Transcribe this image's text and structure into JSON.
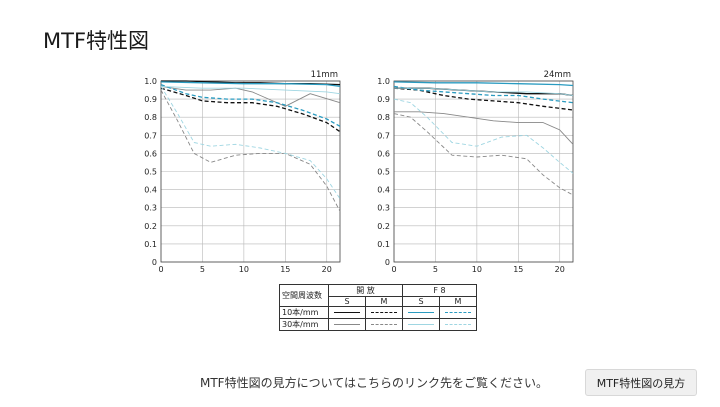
{
  "page": {
    "title": "MTF特性図",
    "footer_note": "MTF特性図の見方についてはこちらのリンク先をご覧ください。",
    "button_label": "MTF特性図の見方"
  },
  "legend": {
    "header_label": "空間周波数",
    "group_open": "開 放",
    "group_f8": "F 8",
    "col_s": "S",
    "col_m": "M",
    "row_10": "10本/mm",
    "row_30": "30本/mm"
  },
  "colors": {
    "open_10": "#111111",
    "open_30": "#888888",
    "f8_10": "#2a9bc0",
    "f8_30": "#9fd6e2"
  },
  "chart_data": [
    {
      "type": "line",
      "title": "11mm",
      "xlim": [
        0,
        21.6
      ],
      "ylim": [
        0,
        1.0
      ],
      "xticks": [
        0,
        5,
        10,
        15,
        20
      ],
      "yticks": [
        0,
        0.1,
        0.2,
        0.3,
        0.4,
        0.5,
        0.6,
        0.7,
        0.8,
        0.9,
        1.0
      ],
      "grid": true,
      "series": [
        {
          "key": "open_10_S",
          "color": "#111111",
          "dash": false,
          "x": [
            0,
            3,
            6,
            9,
            12,
            15,
            18,
            21.6
          ],
          "y": [
            1.0,
            1.0,
            0.995,
            0.99,
            0.99,
            0.985,
            0.985,
            0.98
          ]
        },
        {
          "key": "open_10_M",
          "color": "#111111",
          "dash": true,
          "x": [
            0,
            3,
            5,
            8,
            11,
            14,
            17,
            20,
            21.6
          ],
          "y": [
            0.96,
            0.92,
            0.89,
            0.88,
            0.88,
            0.86,
            0.82,
            0.77,
            0.72
          ]
        },
        {
          "key": "open_30_S",
          "color": "#888888",
          "dash": false,
          "x": [
            0,
            3,
            6,
            9,
            11,
            13,
            15,
            18,
            21.6
          ],
          "y": [
            0.97,
            0.95,
            0.95,
            0.96,
            0.94,
            0.9,
            0.86,
            0.93,
            0.88
          ]
        },
        {
          "key": "open_30_M",
          "color": "#888888",
          "dash": true,
          "x": [
            0,
            2,
            4,
            6,
            9,
            12,
            15,
            18,
            20,
            21.6
          ],
          "y": [
            0.95,
            0.78,
            0.6,
            0.55,
            0.59,
            0.6,
            0.6,
            0.54,
            0.42,
            0.28
          ]
        },
        {
          "key": "f8_10_S",
          "color": "#2a9bc0",
          "dash": false,
          "x": [
            0,
            5,
            10,
            15,
            20,
            21.6
          ],
          "y": [
            0.995,
            0.99,
            0.985,
            0.985,
            0.98,
            0.97
          ]
        },
        {
          "key": "f8_10_M",
          "color": "#2a9bc0",
          "dash": true,
          "x": [
            0,
            3,
            5,
            8,
            11,
            14,
            17,
            20,
            21.6
          ],
          "y": [
            0.98,
            0.93,
            0.91,
            0.9,
            0.9,
            0.88,
            0.84,
            0.79,
            0.75
          ]
        },
        {
          "key": "f8_30_S",
          "color": "#9fd6e2",
          "dash": false,
          "x": [
            0,
            5,
            10,
            15,
            20,
            21.6
          ],
          "y": [
            0.97,
            0.96,
            0.96,
            0.95,
            0.94,
            0.93
          ]
        },
        {
          "key": "f8_30_M",
          "color": "#9fd6e2",
          "dash": true,
          "x": [
            0,
            2,
            4,
            6,
            9,
            12,
            15,
            18,
            20,
            21.6
          ],
          "y": [
            0.97,
            0.82,
            0.66,
            0.64,
            0.65,
            0.63,
            0.6,
            0.56,
            0.46,
            0.35
          ]
        }
      ]
    },
    {
      "type": "line",
      "title": "24mm",
      "xlim": [
        0,
        21.6
      ],
      "ylim": [
        0,
        1.0
      ],
      "xticks": [
        0,
        5,
        10,
        15,
        20
      ],
      "yticks": [
        0,
        0.1,
        0.2,
        0.3,
        0.4,
        0.5,
        0.6,
        0.7,
        0.8,
        0.9,
        1.0
      ],
      "grid": true,
      "series": [
        {
          "key": "open_10_S",
          "color": "#111111",
          "dash": false,
          "x": [
            0,
            4,
            8,
            12,
            16,
            20,
            21.6
          ],
          "y": [
            0.96,
            0.96,
            0.95,
            0.94,
            0.93,
            0.93,
            0.92
          ]
        },
        {
          "key": "open_10_M",
          "color": "#111111",
          "dash": true,
          "x": [
            0,
            3,
            6,
            9,
            12,
            15,
            18,
            21.6
          ],
          "y": [
            0.96,
            0.95,
            0.92,
            0.9,
            0.89,
            0.88,
            0.86,
            0.84
          ]
        },
        {
          "key": "open_30_S",
          "color": "#888888",
          "dash": false,
          "x": [
            0,
            3,
            6,
            9,
            12,
            15,
            18,
            20,
            21.6
          ],
          "y": [
            0.83,
            0.83,
            0.82,
            0.8,
            0.78,
            0.77,
            0.77,
            0.73,
            0.65
          ]
        },
        {
          "key": "open_30_M",
          "color": "#888888",
          "dash": true,
          "x": [
            0,
            2,
            4,
            7,
            10,
            13,
            16,
            18,
            20,
            21.6
          ],
          "y": [
            0.82,
            0.8,
            0.72,
            0.59,
            0.58,
            0.59,
            0.57,
            0.48,
            0.41,
            0.37
          ]
        },
        {
          "key": "f8_10_S",
          "color": "#2a9bc0",
          "dash": false,
          "x": [
            0,
            5,
            10,
            15,
            20,
            21.6
          ],
          "y": [
            0.995,
            0.99,
            0.99,
            0.985,
            0.98,
            0.975
          ]
        },
        {
          "key": "f8_10_M",
          "color": "#2a9bc0",
          "dash": true,
          "x": [
            0,
            3,
            6,
            9,
            12,
            15,
            18,
            21.6
          ],
          "y": [
            0.97,
            0.95,
            0.94,
            0.93,
            0.92,
            0.92,
            0.9,
            0.88
          ]
        },
        {
          "key": "f8_30_S",
          "color": "#9fd6e2",
          "dash": false,
          "x": [
            0,
            4,
            8,
            12,
            16,
            20,
            21.6
          ],
          "y": [
            0.96,
            0.96,
            0.95,
            0.94,
            0.94,
            0.93,
            0.92
          ]
        },
        {
          "key": "f8_30_M",
          "color": "#9fd6e2",
          "dash": true,
          "x": [
            0,
            2,
            4,
            7,
            10,
            13,
            16,
            18,
            20,
            21.6
          ],
          "y": [
            0.9,
            0.88,
            0.8,
            0.66,
            0.64,
            0.69,
            0.7,
            0.63,
            0.55,
            0.49
          ]
        }
      ]
    }
  ]
}
